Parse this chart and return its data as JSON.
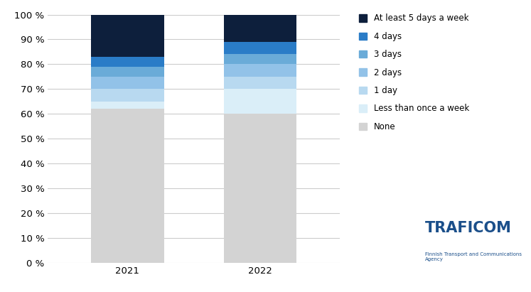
{
  "categories": [
    "2021",
    "2022"
  ],
  "segments": [
    {
      "label": "None",
      "values": [
        62,
        60
      ],
      "color": "#d3d3d3"
    },
    {
      "label": "Less than once a week",
      "values": [
        3,
        10
      ],
      "color": "#daeef8"
    },
    {
      "label": "1 day",
      "values": [
        5,
        5
      ],
      "color": "#b8d9f0"
    },
    {
      "label": "2 days",
      "values": [
        5,
        5
      ],
      "color": "#92c2e8"
    },
    {
      "label": "3 days",
      "values": [
        4,
        4
      ],
      "color": "#6aabd8"
    },
    {
      "label": "4 days",
      "values": [
        4,
        5
      ],
      "color": "#2a7cc7"
    },
    {
      "label": "At least 5 days a week",
      "values": [
        17,
        11
      ],
      "color": "#0d1f3c"
    }
  ],
  "bar_width": 0.55,
  "ylim": [
    0,
    100
  ],
  "yticks": [
    0,
    10,
    20,
    30,
    40,
    50,
    60,
    70,
    80,
    90,
    100
  ],
  "ytick_labels": [
    "0 %",
    "10 %",
    "20 %",
    "30 %",
    "40 %",
    "50 %",
    "60 %",
    "70 %",
    "80 %",
    "90 %",
    "100 %"
  ],
  "background_color": "#ffffff",
  "grid_color": "#cccccc",
  "traficom_text": "TRAFICOM",
  "traficom_sub": "Finnish Transport and Communications Agency",
  "legend_fontsize": 8.5,
  "tick_fontsize": 9.5,
  "fig_width": 7.47,
  "fig_height": 4.11,
  "dpi": 100
}
